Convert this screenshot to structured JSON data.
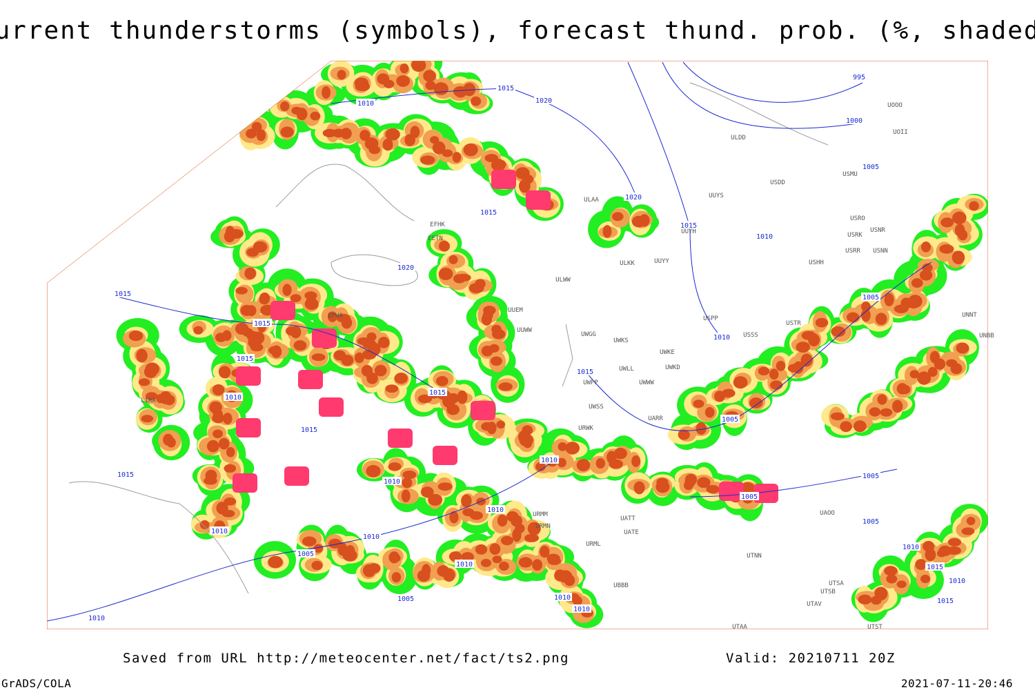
{
  "header": {
    "title": "Current thunderstorms (symbols), forecast thund. prob. (%, shaded)"
  },
  "map": {
    "isobar_labels": [
      "995",
      "1015",
      "1010",
      "1020",
      "1000",
      "1005",
      "1020",
      "1015",
      "1015",
      "1010",
      "1020",
      "1015",
      "1015",
      "1015",
      "1010",
      "1015",
      "1015",
      "1010",
      "1015",
      "1005",
      "1005",
      "1010",
      "1015",
      "1010",
      "1005",
      "1005",
      "1010",
      "1010",
      "1010",
      "1005",
      "1005",
      "1010",
      "1010",
      "1015",
      "1010",
      "1005",
      "1010",
      "1010",
      "1015",
      "1010"
    ],
    "station_labels": [
      "UOOO",
      "UOII",
      "ULDD",
      "USDD",
      "USMU",
      "ULAA",
      "UUYS",
      "USRO",
      "USRK",
      "USNR",
      "UUYH",
      "USRR",
      "USNN",
      "UUYY",
      "ULKK",
      "USHH",
      "ULWW",
      "EFHK",
      "EETN",
      "UUEM",
      "UUWW",
      "UWGG",
      "UWKS",
      "USPP",
      "USSS",
      "USTR",
      "UNNT",
      "UNBB",
      "UWKE",
      "UWLL",
      "UWKD",
      "UWPP",
      "UWWW",
      "UWSS",
      "UARR",
      "URWK",
      "LIRA",
      "URMM",
      "URMN",
      "UATT",
      "UATE",
      "URML",
      "UTNN",
      "UAOO",
      "UTSA",
      "UTSB",
      "UTAV",
      "UTAA",
      "UTST",
      "UBBB",
      "EPWA"
    ]
  },
  "footer": {
    "source": "Saved from URL http://meteocenter.net/fact/ts2.png",
    "valid": "Valid: 20210711 20Z",
    "software": "GrADS/COLA",
    "timestamp": "2021-07-11-20:46"
  }
}
